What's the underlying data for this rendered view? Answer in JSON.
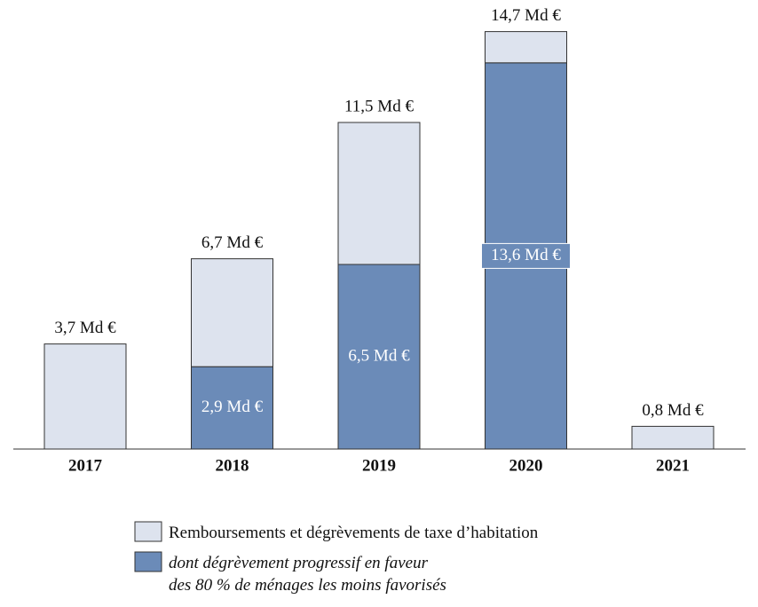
{
  "chart_data": {
    "type": "stacked_bar",
    "categories": [
      "2017",
      "2018",
      "2019",
      "2020",
      "2021"
    ],
    "series": [
      {
        "name": "dont dégrèvement progressif en faveur\ndes 80 % de ménages les moins favorisés",
        "color": "#6b8bb8",
        "values": [
          null,
          2.9,
          6.5,
          13.6,
          null
        ],
        "value_labels": [
          null,
          "2,9 Md €",
          "6,5 Md €",
          "13,6 Md €",
          null
        ]
      },
      {
        "name": "Remboursements et dégrèvements de taxe d’habitation",
        "color": "#dde3ee",
        "values": [
          3.7,
          3.8,
          5.0,
          1.1,
          0.8
        ]
      }
    ],
    "totals": [
      3.7,
      6.7,
      11.5,
      14.7,
      0.8
    ],
    "total_labels": [
      "3,7 Md €",
      "6,7 Md €",
      "11,5 Md €",
      "14,7 Md €",
      "0,8 Md €"
    ],
    "ylim": [
      0,
      15
    ]
  }
}
